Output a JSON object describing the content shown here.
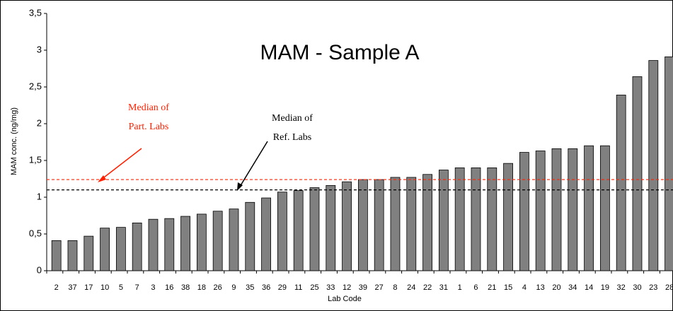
{
  "chart_data": {
    "type": "bar",
    "title": "MAM - Sample A",
    "x_label": "Lab Code",
    "y_label": "MAM conc. (ng/mg)",
    "categories": [
      "2",
      "37",
      "17",
      "10",
      "5",
      "7",
      "3",
      "16",
      "38",
      "18",
      "26",
      "9",
      "35",
      "36",
      "29",
      "11",
      "25",
      "33",
      "12",
      "39",
      "27",
      "8",
      "24",
      "22",
      "31",
      "1",
      "6",
      "21",
      "15",
      "4",
      "13",
      "20",
      "34",
      "14",
      "19",
      "32",
      "30",
      "23",
      "28"
    ],
    "values": [
      0.41,
      0.41,
      0.47,
      0.58,
      0.59,
      0.65,
      0.7,
      0.71,
      0.74,
      0.77,
      0.81,
      0.84,
      0.93,
      0.99,
      1.07,
      1.09,
      1.13,
      1.16,
      1.21,
      1.24,
      1.24,
      1.27,
      1.27,
      1.31,
      1.37,
      1.4,
      1.4,
      1.4,
      1.46,
      1.61,
      1.63,
      1.66,
      1.66,
      1.7,
      1.7,
      2.39,
      2.64,
      2.86,
      2.91
    ],
    "color": "#808080",
    "ylim": [
      0,
      3.5
    ],
    "yticks": [
      0,
      {
        "value": 0.5,
        "label": "0,5"
      },
      1,
      {
        "value": 1.5,
        "label": "1,5"
      },
      2,
      {
        "value": 2.5,
        "label": "2,5"
      },
      3,
      {
        "value": 3.5,
        "label": "3,5"
      }
    ],
    "reference_lines": [
      {
        "lines": [
          "Median of",
          "Part. Labs"
        ],
        "value": 1.24,
        "color": "#ff2000"
      },
      {
        "lines": [
          "Median of",
          "Ref. Labs"
        ],
        "value": 1.1,
        "color": "#000000"
      }
    ]
  }
}
